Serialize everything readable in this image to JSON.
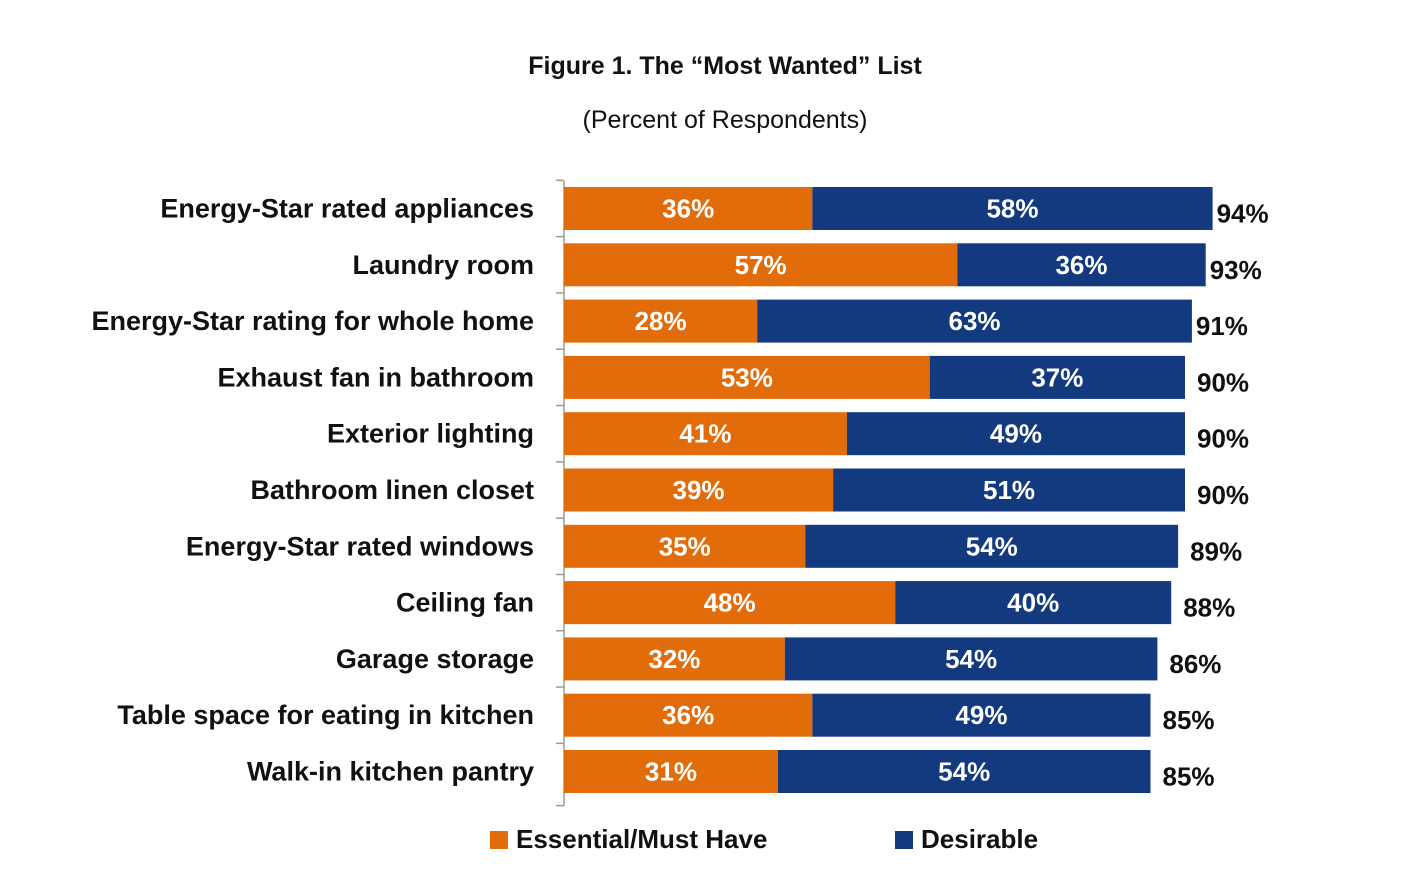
{
  "colors": {
    "essential": "#E36C0A",
    "desirable": "#13397F"
  },
  "chart_data": {
    "type": "bar",
    "orientation": "horizontal",
    "stacked": true,
    "title": "Figure 1. The “Most Wanted” List",
    "subtitle": "(Percent of Respondents)",
    "categories": [
      "Energy-Star rated appliances",
      "Laundry room",
      "Energy-Star rating for whole home",
      "Exhaust fan in bathroom",
      "Exterior lighting",
      "Bathroom linen closet",
      "Energy-Star rated windows",
      "Ceiling fan",
      "Garage storage",
      "Table space for eating in kitchen",
      "Walk-in kitchen pantry"
    ],
    "series": [
      {
        "name": "Essential/Must Have",
        "values": [
          36,
          57,
          28,
          53,
          41,
          39,
          35,
          48,
          32,
          36,
          31
        ],
        "labels": [
          "36%",
          "57%",
          "28%",
          "53%",
          "41%",
          "39%",
          "35%",
          "48%",
          "32%",
          "36%",
          "31%"
        ]
      },
      {
        "name": "Desirable",
        "values": [
          58,
          36,
          63,
          37,
          49,
          51,
          54,
          40,
          54,
          49,
          54
        ],
        "labels": [
          "58%",
          "36%",
          "63%",
          "37%",
          "49%",
          "51%",
          "54%",
          "40%",
          "54%",
          "49%",
          "54%"
        ]
      }
    ],
    "totals": [
      94,
      93,
      91,
      90,
      90,
      90,
      89,
      88,
      86,
      85,
      85
    ],
    "total_labels": [
      "94%",
      "93%",
      "91%",
      "90%",
      "90%",
      "90%",
      "89%",
      "88%",
      "86%",
      "85%",
      "85%"
    ],
    "legend_position": "bottom"
  }
}
